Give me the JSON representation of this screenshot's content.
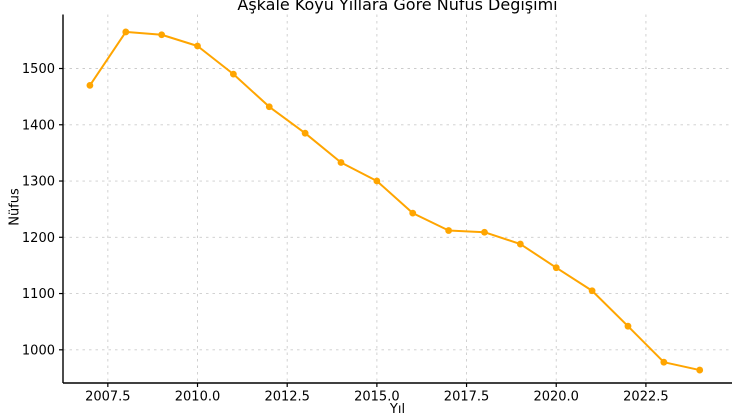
{
  "chart_data": {
    "type": "line",
    "title": "Aşkale Köyü Yıllara Göre Nüfus Değişimi",
    "xlabel": "Yıl",
    "ylabel": "Nüfus",
    "x": [
      2007,
      2008,
      2009,
      2010,
      2011,
      2012,
      2013,
      2014,
      2015,
      2016,
      2017,
      2018,
      2019,
      2020,
      2021,
      2022,
      2023,
      2024
    ],
    "values": [
      1470,
      1565,
      1560,
      1540,
      1490,
      1432,
      1385,
      1333,
      1300,
      1243,
      1212,
      1209,
      1188,
      1146,
      1105,
      1042,
      978,
      964
    ],
    "xticks": [
      {
        "value": 2007.5,
        "label": "2007.5"
      },
      {
        "value": 2010.0,
        "label": "2010.0"
      },
      {
        "value": 2012.5,
        "label": "2012.5"
      },
      {
        "value": 2015.0,
        "label": "2015.0"
      },
      {
        "value": 2017.5,
        "label": "2017.5"
      },
      {
        "value": 2020.0,
        "label": "2020.0"
      },
      {
        "value": 2022.5,
        "label": "2022.5"
      }
    ],
    "yticks": [
      {
        "value": 1000,
        "label": "1000"
      },
      {
        "value": 1100,
        "label": "1100"
      },
      {
        "value": 1200,
        "label": "1200"
      },
      {
        "value": 1300,
        "label": "1300"
      },
      {
        "value": 1400,
        "label": "1400"
      },
      {
        "value": 1500,
        "label": "1500"
      }
    ],
    "xlim": [
      2006.25,
      2024.9
    ],
    "ylim": [
      941,
      1596
    ],
    "grid": true,
    "legend": false,
    "line_color": "#FFA500",
    "marker": "circle",
    "grid_color": "#cccccc",
    "spine_color": "#000000",
    "text_color": "#000000",
    "background": "#ffffff"
  }
}
